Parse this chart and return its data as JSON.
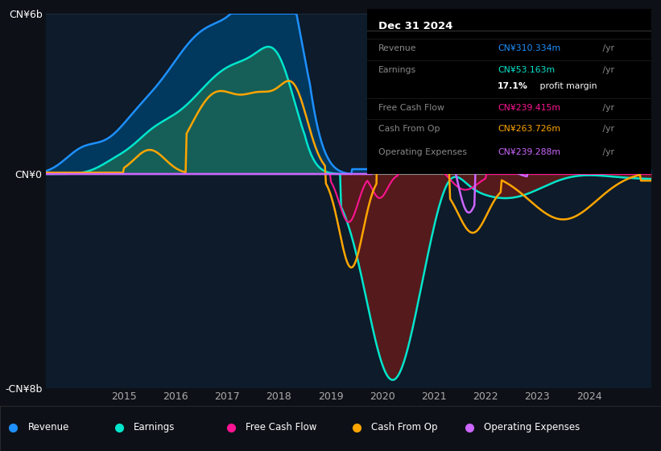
{
  "bg_color": "#0d1117",
  "plot_bg_color": "#0d1b2a",
  "ylim": [
    -8000000000.0,
    6000000000.0
  ],
  "yticks_labels": [
    "CN¥6b",
    "CN¥0",
    "-CN¥8b"
  ],
  "yticks_values": [
    6000000000.0,
    0,
    -8000000000.0
  ],
  "xlabel_ticks": [
    2015,
    2016,
    2017,
    2018,
    2019,
    2020,
    2021,
    2022,
    2023,
    2024
  ],
  "series": {
    "revenue": {
      "color": "#1e90ff",
      "fill_pos": "#003d66",
      "fill_neg": "#003d66"
    },
    "earnings": {
      "color": "#00e5cc",
      "fill_pos": "#1a6657",
      "fill_neg": "#5c1a1a"
    },
    "free_cash_flow": {
      "color": "#ff1493"
    },
    "cash_from_op": {
      "color": "#ffa500"
    },
    "operating_expenses": {
      "color": "#cc66ff"
    }
  },
  "legend": [
    {
      "label": "Revenue",
      "color": "#1e90ff"
    },
    {
      "label": "Earnings",
      "color": "#00e5cc"
    },
    {
      "label": "Free Cash Flow",
      "color": "#ff1493"
    },
    {
      "label": "Cash From Op",
      "color": "#ffa500"
    },
    {
      "label": "Operating Expenses",
      "color": "#cc66ff"
    }
  ],
  "infobox": {
    "title": "Dec 31 2024",
    "rows": [
      {
        "label": "Revenue",
        "value": "CN¥310.334m /yr",
        "vcolor": "#1e90ff"
      },
      {
        "label": "Earnings",
        "value": "CN¥53.163m /yr",
        "vcolor": "#00e5cc"
      },
      {
        "label": "",
        "value": "17.1% profit margin",
        "vcolor": "#ffffff"
      },
      {
        "label": "Free Cash Flow",
        "value": "CN¥239.415m /yr",
        "vcolor": "#ff1493"
      },
      {
        "label": "Cash From Op",
        "value": "CN¥263.726m /yr",
        "vcolor": "#ffa500"
      },
      {
        "label": "Operating Expenses",
        "value": "CN¥239.288m /yr",
        "vcolor": "#cc66ff"
      }
    ]
  }
}
